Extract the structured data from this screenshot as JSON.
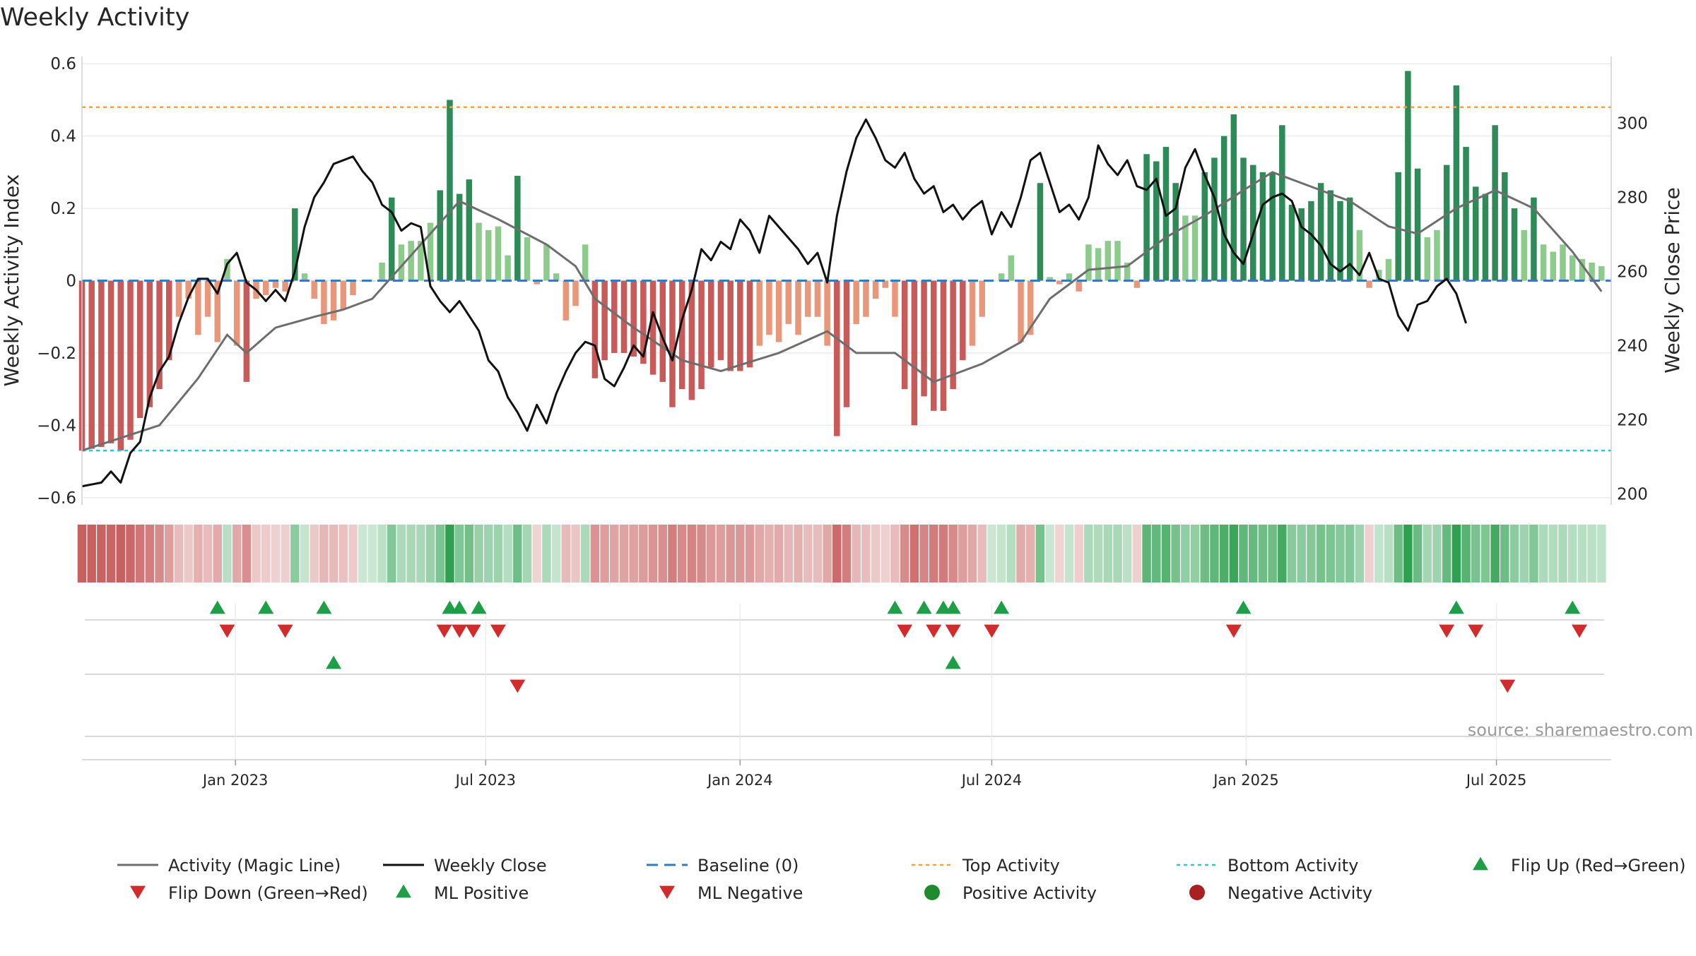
{
  "chart_data": {
    "type": "bar",
    "title": "Weekly Activity",
    "ylabel_left": "Weekly Activity Index",
    "ylabel_right": "Weekly Close Price",
    "ylim_left": [
      -0.62,
      0.62
    ],
    "ylim_right": [
      197,
      318
    ],
    "yticks_left": [
      0.6,
      0.4,
      0.2,
      0,
      -0.2,
      -0.4,
      -0.6
    ],
    "ytick_labels_left": [
      "0.6",
      "0.4",
      "0.2",
      "0",
      "−0.2",
      "−0.4",
      "−0.6"
    ],
    "yticks_right": [
      300,
      280,
      260,
      240,
      220,
      200
    ],
    "ytick_labels_right": [
      "300",
      "280",
      "260",
      "240",
      "220",
      "200"
    ],
    "x_start": "2022-09-12",
    "x_end": "2025-09-22",
    "x_ticks": [
      {
        "date": "2023-01-01",
        "label": "Jan 2023"
      },
      {
        "date": "2023-07-01",
        "label": "Jul 2023"
      },
      {
        "date": "2024-01-01",
        "label": "Jan 2024"
      },
      {
        "date": "2024-07-01",
        "label": "Jul 2024"
      },
      {
        "date": "2025-01-01",
        "label": "Jan 2025"
      },
      {
        "date": "2025-07-01",
        "label": "Jul 2025"
      }
    ],
    "first_week": "2022-09-12",
    "week_count": 158,
    "activity_keypoints": [
      [
        0,
        -0.47
      ],
      [
        2,
        -0.46
      ],
      [
        3,
        -0.45
      ],
      [
        4,
        -0.47
      ],
      [
        5,
        -0.44
      ],
      [
        6,
        -0.38
      ],
      [
        7,
        -0.35
      ],
      [
        8,
        -0.3
      ],
      [
        9,
        -0.22
      ],
      [
        10,
        -0.1
      ],
      [
        11,
        -0.05
      ],
      [
        12,
        -0.15
      ],
      [
        13,
        -0.1
      ],
      [
        14,
        -0.17
      ],
      [
        15,
        0.06
      ],
      [
        16,
        -0.18
      ],
      [
        17,
        -0.28
      ],
      [
        18,
        -0.05
      ],
      [
        19,
        -0.04
      ],
      [
        20,
        -0.02
      ],
      [
        21,
        -0.03
      ],
      [
        22,
        0.2
      ],
      [
        23,
        0.02
      ],
      [
        24,
        -0.05
      ],
      [
        25,
        -0.12
      ],
      [
        26,
        -0.11
      ],
      [
        27,
        -0.08
      ],
      [
        28,
        -0.04
      ],
      [
        29,
        0.0
      ],
      [
        30,
        0.0
      ],
      [
        31,
        0.05
      ],
      [
        32,
        0.23
      ],
      [
        33,
        0.1
      ],
      [
        34,
        0.11
      ],
      [
        35,
        0.11
      ],
      [
        36,
        0.16
      ],
      [
        37,
        0.25
      ],
      [
        38,
        0.5
      ],
      [
        39,
        0.24
      ],
      [
        40,
        0.28
      ],
      [
        41,
        0.16
      ],
      [
        42,
        0.14
      ],
      [
        43,
        0.15
      ],
      [
        44,
        0.07
      ],
      [
        45,
        0.29
      ],
      [
        46,
        0.12
      ],
      [
        47,
        -0.01
      ],
      [
        48,
        0.1
      ],
      [
        49,
        0.02
      ],
      [
        50,
        -0.11
      ],
      [
        51,
        -0.07
      ],
      [
        52,
        0.1
      ],
      [
        53,
        -0.27
      ],
      [
        54,
        -0.22
      ],
      [
        55,
        -0.2
      ],
      [
        56,
        -0.2
      ],
      [
        57,
        -0.21
      ],
      [
        58,
        -0.23
      ],
      [
        59,
        -0.26
      ],
      [
        60,
        -0.28
      ],
      [
        61,
        -0.35
      ],
      [
        62,
        -0.3
      ],
      [
        63,
        -0.33
      ],
      [
        64,
        -0.3
      ],
      [
        65,
        -0.24
      ],
      [
        66,
        -0.22
      ],
      [
        67,
        -0.25
      ],
      [
        68,
        -0.25
      ],
      [
        69,
        -0.24
      ],
      [
        70,
        -0.18
      ],
      [
        71,
        -0.15
      ],
      [
        72,
        -0.17
      ],
      [
        73,
        -0.12
      ],
      [
        74,
        -0.15
      ],
      [
        75,
        -0.1
      ],
      [
        76,
        -0.1
      ],
      [
        77,
        -0.18
      ],
      [
        78,
        -0.43
      ],
      [
        79,
        -0.35
      ],
      [
        80,
        -0.12
      ],
      [
        81,
        -0.1
      ],
      [
        82,
        -0.05
      ],
      [
        83,
        -0.02
      ],
      [
        84,
        -0.1
      ],
      [
        85,
        -0.3
      ],
      [
        86,
        -0.4
      ],
      [
        87,
        -0.32
      ],
      [
        88,
        -0.36
      ],
      [
        89,
        -0.36
      ],
      [
        90,
        -0.3
      ],
      [
        91,
        -0.22
      ],
      [
        92,
        -0.18
      ],
      [
        93,
        -0.1
      ],
      [
        94,
        0.0
      ],
      [
        95,
        0.02
      ],
      [
        96,
        0.07
      ],
      [
        97,
        -0.17
      ],
      [
        98,
        -0.15
      ],
      [
        99,
        0.27
      ],
      [
        100,
        0.01
      ],
      [
        101,
        -0.01
      ],
      [
        102,
        0.02
      ],
      [
        103,
        -0.03
      ],
      [
        104,
        0.1
      ],
      [
        105,
        0.09
      ],
      [
        106,
        0.11
      ],
      [
        107,
        0.11
      ],
      [
        108,
        0.05
      ],
      [
        109,
        -0.02
      ],
      [
        110,
        0.35
      ],
      [
        111,
        0.33
      ],
      [
        112,
        0.37
      ],
      [
        113,
        0.27
      ],
      [
        114,
        0.18
      ],
      [
        115,
        0.18
      ],
      [
        116,
        0.3
      ],
      [
        117,
        0.34
      ],
      [
        118,
        0.4
      ],
      [
        119,
        0.46
      ],
      [
        120,
        0.34
      ],
      [
        121,
        0.32
      ],
      [
        122,
        0.3
      ],
      [
        123,
        0.3
      ],
      [
        124,
        0.43
      ],
      [
        125,
        0.21
      ],
      [
        126,
        0.2
      ],
      [
        127,
        0.22
      ],
      [
        128,
        0.27
      ],
      [
        129,
        0.25
      ],
      [
        130,
        0.22
      ],
      [
        131,
        0.23
      ],
      [
        132,
        0.14
      ],
      [
        133,
        -0.02
      ],
      [
        134,
        0.03
      ],
      [
        135,
        0.06
      ],
      [
        136,
        0.3
      ],
      [
        137,
        0.58
      ],
      [
        138,
        0.31
      ],
      [
        139,
        0.12
      ],
      [
        140,
        0.14
      ],
      [
        141,
        0.32
      ],
      [
        142,
        0.54
      ],
      [
        143,
        0.37
      ],
      [
        144,
        0.26
      ],
      [
        145,
        0.24
      ],
      [
        146,
        0.43
      ],
      [
        147,
        0.3
      ],
      [
        148,
        0.2
      ],
      [
        149,
        0.14
      ],
      [
        150,
        0.23
      ],
      [
        151,
        0.1
      ],
      [
        152,
        0.08
      ],
      [
        153,
        0.1
      ],
      [
        154,
        0.07
      ],
      [
        155,
        0.06
      ],
      [
        156,
        0.05
      ],
      [
        157,
        0.04
      ]
    ],
    "bar_color_scale": {
      "red_strong": "#c85a5a",
      "red_light": "#e8977a",
      "green_strong": "#2e8b57",
      "green_light": "#8ccb8c"
    },
    "magic_line_keypoints": [
      [
        0,
        -0.47
      ],
      [
        8,
        -0.4
      ],
      [
        12,
        -0.27
      ],
      [
        15,
        -0.15
      ],
      [
        17,
        -0.2
      ],
      [
        20,
        -0.13
      ],
      [
        24,
        -0.1
      ],
      [
        27,
        -0.08
      ],
      [
        30,
        -0.05
      ],
      [
        35,
        0.1
      ],
      [
        39,
        0.22
      ],
      [
        43,
        0.17
      ],
      [
        48,
        0.1
      ],
      [
        51,
        0.04
      ],
      [
        53,
        -0.05
      ],
      [
        57,
        -0.13
      ],
      [
        62,
        -0.22
      ],
      [
        66,
        -0.25
      ],
      [
        72,
        -0.2
      ],
      [
        77,
        -0.14
      ],
      [
        80,
        -0.2
      ],
      [
        84,
        -0.2
      ],
      [
        88,
        -0.28
      ],
      [
        93,
        -0.23
      ],
      [
        97,
        -0.17
      ],
      [
        100,
        -0.05
      ],
      [
        104,
        0.03
      ],
      [
        108,
        0.04
      ],
      [
        112,
        0.12
      ],
      [
        116,
        0.18
      ],
      [
        120,
        0.25
      ],
      [
        123,
        0.3
      ],
      [
        127,
        0.26
      ],
      [
        131,
        0.22
      ],
      [
        135,
        0.15
      ],
      [
        138,
        0.13
      ],
      [
        142,
        0.2
      ],
      [
        146,
        0.25
      ],
      [
        150,
        0.2
      ],
      [
        154,
        0.08
      ],
      [
        157,
        -0.03
      ]
    ],
    "magic_line_values": [],
    "close_keypoints": [
      [
        0,
        202
      ],
      [
        2,
        203
      ],
      [
        3,
        206
      ],
      [
        4,
        203
      ],
      [
        5,
        211
      ],
      [
        6,
        214
      ],
      [
        7,
        226
      ],
      [
        8,
        233
      ],
      [
        9,
        237
      ],
      [
        10,
        246
      ],
      [
        11,
        253
      ],
      [
        12,
        258
      ],
      [
        13,
        258
      ],
      [
        14,
        254
      ],
      [
        15,
        262
      ],
      [
        16,
        265
      ],
      [
        17,
        257
      ],
      [
        18,
        255
      ],
      [
        19,
        252
      ],
      [
        20,
        255
      ],
      [
        21,
        252
      ],
      [
        22,
        260
      ],
      [
        23,
        272
      ],
      [
        24,
        280
      ],
      [
        25,
        284
      ],
      [
        26,
        289
      ],
      [
        27,
        290
      ],
      [
        28,
        291
      ],
      [
        29,
        287
      ],
      [
        30,
        284
      ],
      [
        31,
        278
      ],
      [
        32,
        276
      ],
      [
        33,
        271
      ],
      [
        34,
        273
      ],
      [
        35,
        272
      ],
      [
        36,
        256
      ],
      [
        37,
        252
      ],
      [
        38,
        249
      ],
      [
        39,
        252
      ],
      [
        40,
        248
      ],
      [
        41,
        244
      ],
      [
        42,
        236
      ],
      [
        43,
        233
      ],
      [
        44,
        226
      ],
      [
        45,
        222
      ],
      [
        46,
        217
      ],
      [
        47,
        224
      ],
      [
        48,
        219
      ],
      [
        49,
        227
      ],
      [
        50,
        233
      ],
      [
        51,
        238
      ],
      [
        52,
        241
      ],
      [
        53,
        240
      ],
      [
        54,
        231
      ],
      [
        55,
        229
      ],
      [
        56,
        234
      ],
      [
        57,
        240
      ],
      [
        58,
        237
      ],
      [
        59,
        249
      ],
      [
        60,
        242
      ],
      [
        61,
        236
      ],
      [
        62,
        247
      ],
      [
        63,
        255
      ],
      [
        64,
        266
      ],
      [
        65,
        263
      ],
      [
        66,
        268
      ],
      [
        67,
        266
      ],
      [
        68,
        274
      ],
      [
        69,
        271
      ],
      [
        70,
        265
      ],
      [
        71,
        275
      ],
      [
        72,
        272
      ],
      [
        73,
        269
      ],
      [
        74,
        266
      ],
      [
        75,
        262
      ],
      [
        76,
        265
      ],
      [
        77,
        257
      ],
      [
        78,
        275
      ],
      [
        79,
        287
      ],
      [
        80,
        296
      ],
      [
        81,
        301
      ],
      [
        82,
        296
      ],
      [
        83,
        290
      ],
      [
        84,
        288
      ],
      [
        85,
        292
      ],
      [
        86,
        285
      ],
      [
        87,
        281
      ],
      [
        88,
        283
      ],
      [
        89,
        276
      ],
      [
        90,
        278
      ],
      [
        91,
        274
      ],
      [
        92,
        277
      ],
      [
        93,
        279
      ],
      [
        94,
        270
      ],
      [
        95,
        276
      ],
      [
        96,
        272
      ],
      [
        97,
        280
      ],
      [
        98,
        290
      ],
      [
        99,
        292
      ],
      [
        100,
        284
      ],
      [
        101,
        276
      ],
      [
        102,
        278
      ],
      [
        103,
        274
      ],
      [
        104,
        280
      ],
      [
        105,
        294
      ],
      [
        106,
        289
      ],
      [
        107,
        286
      ],
      [
        108,
        290
      ],
      [
        109,
        283
      ],
      [
        110,
        282
      ],
      [
        111,
        285
      ],
      [
        112,
        275
      ],
      [
        113,
        277
      ],
      [
        114,
        288
      ],
      [
        115,
        293
      ],
      [
        116,
        286
      ],
      [
        117,
        280
      ],
      [
        118,
        270
      ],
      [
        119,
        265
      ],
      [
        120,
        262
      ],
      [
        121,
        270
      ],
      [
        122,
        278
      ],
      [
        123,
        280
      ],
      [
        124,
        281
      ],
      [
        125,
        279
      ],
      [
        126,
        272
      ],
      [
        127,
        270
      ],
      [
        128,
        267
      ],
      [
        129,
        262
      ],
      [
        130,
        260
      ],
      [
        131,
        262
      ],
      [
        132,
        259
      ],
      [
        133,
        265
      ],
      [
        134,
        258
      ],
      [
        135,
        257
      ],
      [
        136,
        248
      ],
      [
        137,
        244
      ],
      [
        138,
        251
      ],
      [
        139,
        252
      ],
      [
        140,
        256
      ],
      [
        141,
        258
      ],
      [
        142,
        254
      ],
      [
        143,
        246
      ]
    ],
    "baseline": 0,
    "top_activity": 0.48,
    "bottom_activity": -0.47,
    "colors": {
      "magic_line": "#6e6e6e",
      "weekly_close": "#111111",
      "baseline": "#3a7ab8",
      "top_activity": "#e8a455",
      "bottom_activity": "#2ec4d6",
      "up_marker": "#1f9e48",
      "down_marker": "#d22b2b",
      "positive_dot": "#1f8a2e",
      "negative_dot": "#a82020"
    },
    "flip_up_dates": [
      "2022-12-19",
      "2023-01-23",
      "2023-03-06",
      "2023-06-05",
      "2023-06-12",
      "2023-06-26",
      "2024-04-22",
      "2024-05-13",
      "2024-05-27",
      "2024-06-03",
      "2024-07-08",
      "2024-12-30",
      "2025-06-02",
      "2025-08-25"
    ],
    "flip_down_dates": [
      "2022-12-26",
      "2023-02-06",
      "2023-06-01",
      "2023-06-12",
      "2023-06-22",
      "2023-07-10",
      "2024-04-29",
      "2024-05-20",
      "2024-06-03",
      "2024-07-01",
      "2024-12-23",
      "2025-05-26",
      "2025-06-16",
      "2025-08-30"
    ],
    "ml_positive_dates": [
      "2023-03-13",
      "2024-06-03"
    ],
    "ml_negative_dates": [
      "2023-07-24",
      "2025-07-09"
    ],
    "positive_activity_dates": [],
    "negative_activity_dates": [],
    "legend": [
      {
        "label": "Activity (Magic Line)",
        "kind": "line"
      },
      {
        "label": "Weekly Close",
        "kind": "line"
      },
      {
        "label": "Baseline (0)",
        "kind": "dashed"
      },
      {
        "label": "Top Activity",
        "kind": "dotted"
      },
      {
        "label": "Bottom Activity",
        "kind": "dotted"
      },
      {
        "label": "Flip Up (Red→Green)",
        "kind": "tri-up"
      },
      {
        "label": "Flip Down (Green→Red)",
        "kind": "tri-down"
      },
      {
        "label": "ML Positive",
        "kind": "tri-up"
      },
      {
        "label": "ML Negative",
        "kind": "tri-down"
      },
      {
        "label": "Positive Activity",
        "kind": "dot"
      },
      {
        "label": "Negative Activity",
        "kind": "dot"
      }
    ],
    "source": "source: sharemaestro.com"
  }
}
